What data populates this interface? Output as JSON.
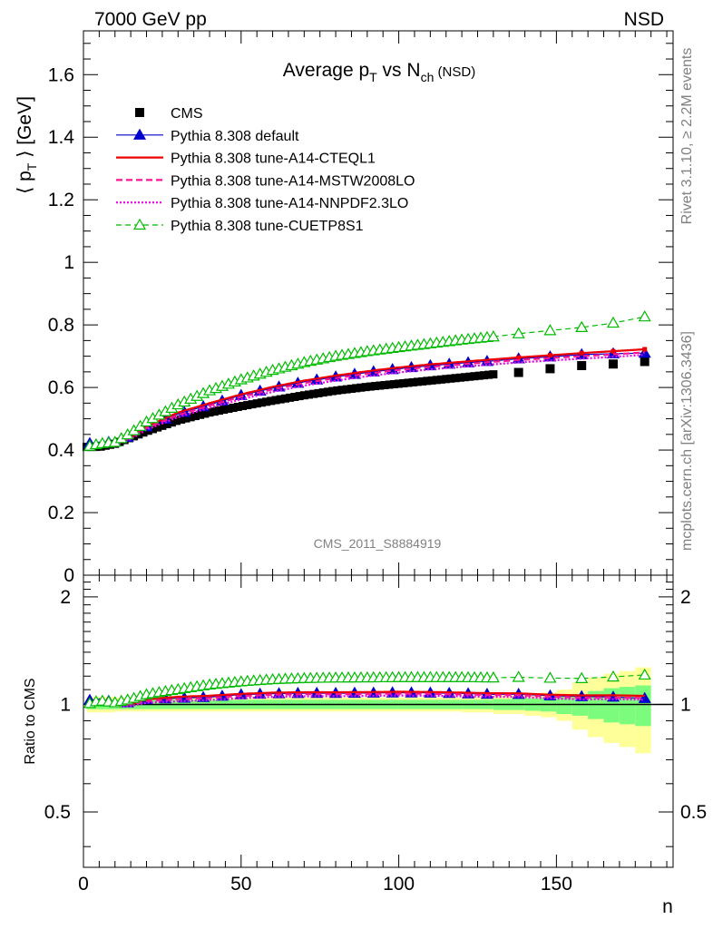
{
  "header": {
    "left_label": "7000 GeV pp",
    "right_label": "NSD"
  },
  "side_labels": {
    "rivet": "Rivet 3.1.10, ≥ 2.2M events",
    "mcplots": "mcplots.cern.ch [arXiv:1306.3436]"
  },
  "watermark": "CMS_2011_S8884919",
  "chart_data": [
    {
      "type": "scatter",
      "title": "Average p_T vs N_ch (NSD)",
      "title_parts": {
        "main": "Average p",
        "sub1": "T",
        "mid": " vs N",
        "sub2": "ch",
        "tail": " (NSD)"
      },
      "ylabel": "⟨ p_T ⟩ [GeV]",
      "ylabel_parts": {
        "open": "⟨ p",
        "sub": "T",
        "close": " ⟩ [GeV]"
      },
      "xlabel": "n",
      "xlim": [
        0,
        187
      ],
      "ylim": [
        0,
        1.74
      ],
      "yticks": [
        0,
        0.2,
        0.4,
        0.6,
        0.8,
        1,
        1.2,
        1.4,
        1.6
      ],
      "ytick_labels": [
        "0",
        "0.2",
        "0.4",
        "0.6",
        "0.8",
        "1",
        "1.2",
        "1.4",
        "1.6"
      ],
      "x_knots": [
        1,
        5,
        10,
        15,
        20,
        30,
        40,
        50,
        60,
        70,
        80,
        90,
        100,
        110,
        120,
        130
      ],
      "cms_knots": [
        0.41,
        0.41,
        0.42,
        0.44,
        0.46,
        0.495,
        0.52,
        0.54,
        0.558,
        0.575,
        0.59,
        0.602,
        0.612,
        0.622,
        0.632,
        0.642
      ],
      "cms_tail": {
        "x": [
          138,
          148,
          158,
          168,
          178
        ],
        "y": [
          0.648,
          0.66,
          0.67,
          0.675,
          0.683
        ]
      },
      "series": [
        {
          "name": "CMS",
          "color": "#000000",
          "style": "data"
        },
        {
          "name": "Pythia 8.308 default",
          "color": "#0000cc",
          "style": "solid-thin",
          "marker": "triangle-filled",
          "y_knots": [
            0.42,
            0.425,
            0.425,
            0.445,
            0.475,
            0.515,
            0.545,
            0.575,
            0.598,
            0.618,
            0.634,
            0.648,
            0.66,
            0.67,
            0.678,
            0.685
          ],
          "tail": {
            "x": [
              138,
              148,
              158,
              168,
              178
            ],
            "y": [
              0.692,
              0.698,
              0.705,
              0.708,
              0.71
            ]
          }
        },
        {
          "name": "Pythia 8.308 tune-A14-CTEQL1",
          "color": "#ee0000",
          "style": "solid-thick",
          "marker": "none",
          "y_knots": [
            0.41,
            0.415,
            0.42,
            0.44,
            0.475,
            0.52,
            0.55,
            0.578,
            0.602,
            0.622,
            0.638,
            0.652,
            0.664,
            0.674,
            0.682,
            0.69
          ],
          "tail": {
            "x": [
              138,
              148,
              158,
              168,
              178
            ],
            "y": [
              0.696,
              0.703,
              0.71,
              0.716,
              0.722
            ]
          }
        },
        {
          "name": "Pythia 8.308 tune-A14-MSTW2008LO",
          "color": "#ff1493",
          "style": "dashed",
          "marker": "none",
          "y_knots": [
            0.41,
            0.415,
            0.42,
            0.44,
            0.47,
            0.512,
            0.542,
            0.57,
            0.594,
            0.614,
            0.63,
            0.644,
            0.656,
            0.666,
            0.674,
            0.682
          ],
          "tail": {
            "x": [
              138,
              148,
              158,
              168,
              178
            ],
            "y": [
              0.688,
              0.694,
              0.7,
              0.706,
              0.712
            ]
          }
        },
        {
          "name": "Pythia 8.308 tune-A14-NNPDF2.3LO",
          "color": "#ee00ee",
          "style": "dotted",
          "marker": "none",
          "y_knots": [
            0.41,
            0.412,
            0.415,
            0.435,
            0.465,
            0.505,
            0.535,
            0.562,
            0.586,
            0.606,
            0.622,
            0.636,
            0.648,
            0.658,
            0.666,
            0.674
          ],
          "tail": {
            "x": [
              138,
              148,
              158,
              168,
              178
            ],
            "y": [
              0.68,
              0.686,
              0.692,
              0.698,
              0.704
            ]
          }
        },
        {
          "name": "Pythia 8.308 tune-CUETP8S1",
          "color": "#00bb00",
          "style": "dashed-thin",
          "marker": "triangle-open",
          "y_knots": [
            0.41,
            0.42,
            0.425,
            0.455,
            0.49,
            0.545,
            0.59,
            0.625,
            0.655,
            0.68,
            0.7,
            0.715,
            0.728,
            0.74,
            0.752,
            0.762
          ],
          "tail": {
            "x": [
              138,
              148,
              158,
              168,
              178
            ],
            "y": [
              0.772,
              0.782,
              0.792,
              0.806,
              0.826
            ]
          }
        }
      ]
    },
    {
      "type": "line",
      "ylabel": "Ratio to CMS",
      "xlabel": "n",
      "xlim": [
        0,
        187
      ],
      "ylim": [
        0.35,
        2.3
      ],
      "log_scale_y": true,
      "yticks": [
        0.5,
        1,
        2
      ],
      "ytick_labels": [
        "0.5",
        "1",
        "2"
      ],
      "xticks": [
        0,
        50,
        100,
        150
      ],
      "xtick_labels": [
        "0",
        "50",
        "100",
        "150"
      ],
      "band_edges": [
        1,
        10,
        20,
        40,
        60,
        80,
        100,
        120,
        125,
        130,
        140,
        145,
        150,
        155,
        160,
        165,
        170,
        175,
        180
      ],
      "band_stat": [
        0.03,
        0.03,
        0.03,
        0.03,
        0.03,
        0.03,
        0.03,
        0.03,
        0.03,
        0.035,
        0.04,
        0.045,
        0.06,
        0.07,
        0.09,
        0.11,
        0.12,
        0.13
      ],
      "band_total": [
        0.05,
        0.045,
        0.045,
        0.045,
        0.045,
        0.045,
        0.045,
        0.05,
        0.05,
        0.06,
        0.07,
        0.08,
        0.1,
        0.15,
        0.19,
        0.22,
        0.24,
        0.27
      ],
      "band_colors": {
        "inner": "#7cfc7c",
        "outer": "#ffff99"
      }
    }
  ]
}
